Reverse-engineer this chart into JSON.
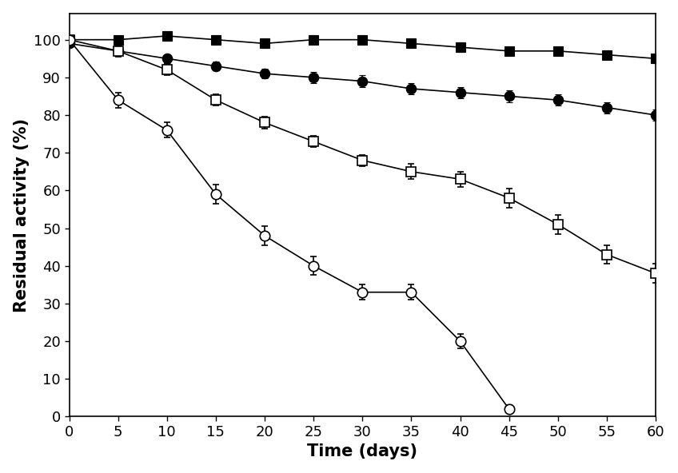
{
  "x": [
    0,
    5,
    10,
    15,
    20,
    25,
    30,
    35,
    40,
    45,
    50,
    55,
    60
  ],
  "filled_square": [
    100,
    100,
    101,
    100,
    99,
    100,
    100,
    99,
    98,
    97,
    97,
    96,
    95
  ],
  "filled_square_err": [
    0.8,
    0.8,
    1.2,
    1.2,
    1.2,
    1.2,
    1.2,
    1.2,
    1.2,
    1.2,
    1.2,
    1.2,
    1.2
  ],
  "filled_circle": [
    99,
    97,
    95,
    93,
    91,
    90,
    89,
    87,
    86,
    85,
    84,
    82,
    80
  ],
  "filled_circle_err": [
    0.8,
    0.8,
    1.2,
    1.2,
    1.2,
    1.5,
    1.5,
    1.5,
    1.5,
    1.5,
    1.5,
    1.5,
    1.5
  ],
  "open_square": [
    100,
    97,
    92,
    84,
    78,
    73,
    68,
    65,
    63,
    58,
    51,
    43,
    38
  ],
  "open_square_err": [
    0.8,
    1.5,
    1.5,
    1.5,
    1.5,
    1.5,
    1.5,
    2.0,
    2.0,
    2.5,
    2.5,
    2.5,
    2.5
  ],
  "open_circle": [
    100,
    84,
    76,
    59,
    48,
    40,
    33,
    33,
    20,
    2,
    null,
    null,
    null
  ],
  "open_circle_err": [
    0.8,
    2.0,
    2.0,
    2.5,
    2.5,
    2.5,
    2.0,
    2.0,
    2.0,
    1.0,
    null,
    null,
    null
  ],
  "xlabel": "Time (days)",
  "ylabel": "Residual activity (%)",
  "xlim": [
    0,
    60
  ],
  "ylim": [
    0,
    107
  ],
  "yticks": [
    0,
    10,
    20,
    30,
    40,
    50,
    60,
    70,
    80,
    90,
    100
  ],
  "xticks": [
    0,
    5,
    10,
    15,
    20,
    25,
    30,
    35,
    40,
    45,
    50,
    55,
    60
  ],
  "marker_size": 8,
  "linewidth": 1.2,
  "capsize": 3,
  "xlabel_fontsize": 15,
  "ylabel_fontsize": 15,
  "tick_fontsize": 13
}
